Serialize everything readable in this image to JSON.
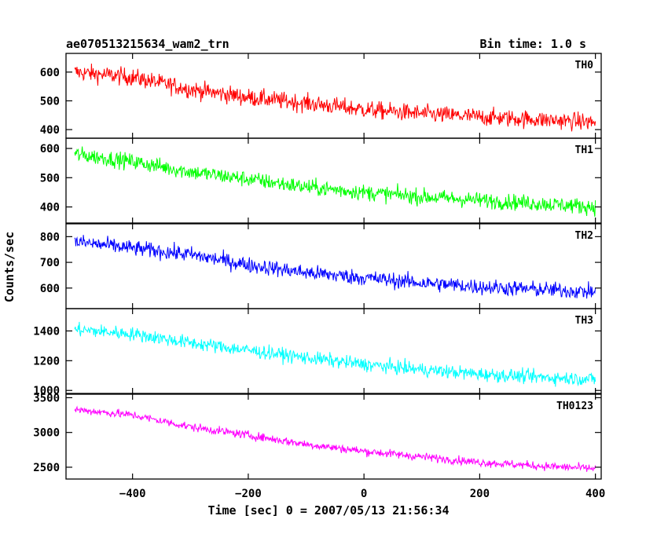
{
  "header": {
    "title": "ae070513215634_wam2_trn",
    "bin_time": "Bin time: 1.0 s"
  },
  "chart_data": {
    "type": "line",
    "xlabel": "Time [sec] 0 = 2007/05/13 21:56:34",
    "ylabel": "Counts/sec",
    "xlim": [
      -515,
      410
    ],
    "x_ticks": [
      -400,
      -200,
      0,
      200,
      400
    ],
    "x_tick_labels": [
      "−400",
      "−200",
      "0",
      "200",
      "400"
    ],
    "x_start": -500,
    "x_end": 400,
    "x_step": 1,
    "grid": false,
    "panels": [
      {
        "name": "TH0",
        "color": "#ff0000",
        "ylim": [
          370,
          665
        ],
        "y_ticks": [
          400,
          500,
          600
        ],
        "trend": [
          [
            -500,
            600
          ],
          [
            -400,
            582
          ],
          [
            -300,
            540
          ],
          [
            -200,
            512
          ],
          [
            -100,
            492
          ],
          [
            0,
            470
          ],
          [
            100,
            455
          ],
          [
            200,
            444
          ],
          [
            300,
            435
          ],
          [
            400,
            425
          ]
        ],
        "noise": 28
      },
      {
        "name": "TH1",
        "color": "#00ff00",
        "ylim": [
          345,
          635
        ],
        "y_ticks": [
          400,
          500,
          600
        ],
        "trend": [
          [
            -500,
            580
          ],
          [
            -400,
            555
          ],
          [
            -300,
            520
          ],
          [
            -200,
            495
          ],
          [
            -100,
            468
          ],
          [
            0,
            450
          ],
          [
            100,
            435
          ],
          [
            200,
            423
          ],
          [
            300,
            412
          ],
          [
            400,
            400
          ]
        ],
        "noise": 25
      },
      {
        "name": "TH2",
        "color": "#0000ff",
        "ylim": [
          520,
          850
        ],
        "y_ticks": [
          600,
          700,
          800
        ],
        "trend": [
          [
            -500,
            780
          ],
          [
            -400,
            755
          ],
          [
            -300,
            730
          ],
          [
            -200,
            690
          ],
          [
            -100,
            660
          ],
          [
            0,
            640
          ],
          [
            100,
            620
          ],
          [
            200,
            605
          ],
          [
            300,
            595
          ],
          [
            400,
            585
          ]
        ],
        "noise": 28
      },
      {
        "name": "TH3",
        "color": "#00ffff",
        "ylim": [
          980,
          1550
        ],
        "y_ticks": [
          1000,
          1200,
          1400
        ],
        "y_tick_labels": [
          "1000",
          "1200",
          "1400"
        ],
        "trend": [
          [
            -500,
            1410
          ],
          [
            -400,
            1380
          ],
          [
            -300,
            1320
          ],
          [
            -200,
            1270
          ],
          [
            -100,
            1220
          ],
          [
            0,
            1175
          ],
          [
            100,
            1140
          ],
          [
            200,
            1110
          ],
          [
            300,
            1090
          ],
          [
            400,
            1075
          ]
        ],
        "noise": 42
      },
      {
        "name": "TH0123",
        "color": "#ff00ff",
        "ylim": [
          2330,
          3550
        ],
        "y_ticks": [
          2500,
          3000,
          3500
        ],
        "trend": [
          [
            -500,
            3330
          ],
          [
            -400,
            3250
          ],
          [
            -300,
            3080
          ],
          [
            -200,
            2960
          ],
          [
            -100,
            2830
          ],
          [
            0,
            2730
          ],
          [
            100,
            2650
          ],
          [
            200,
            2570
          ],
          [
            300,
            2520
          ],
          [
            400,
            2480
          ]
        ],
        "noise": 55
      }
    ]
  }
}
